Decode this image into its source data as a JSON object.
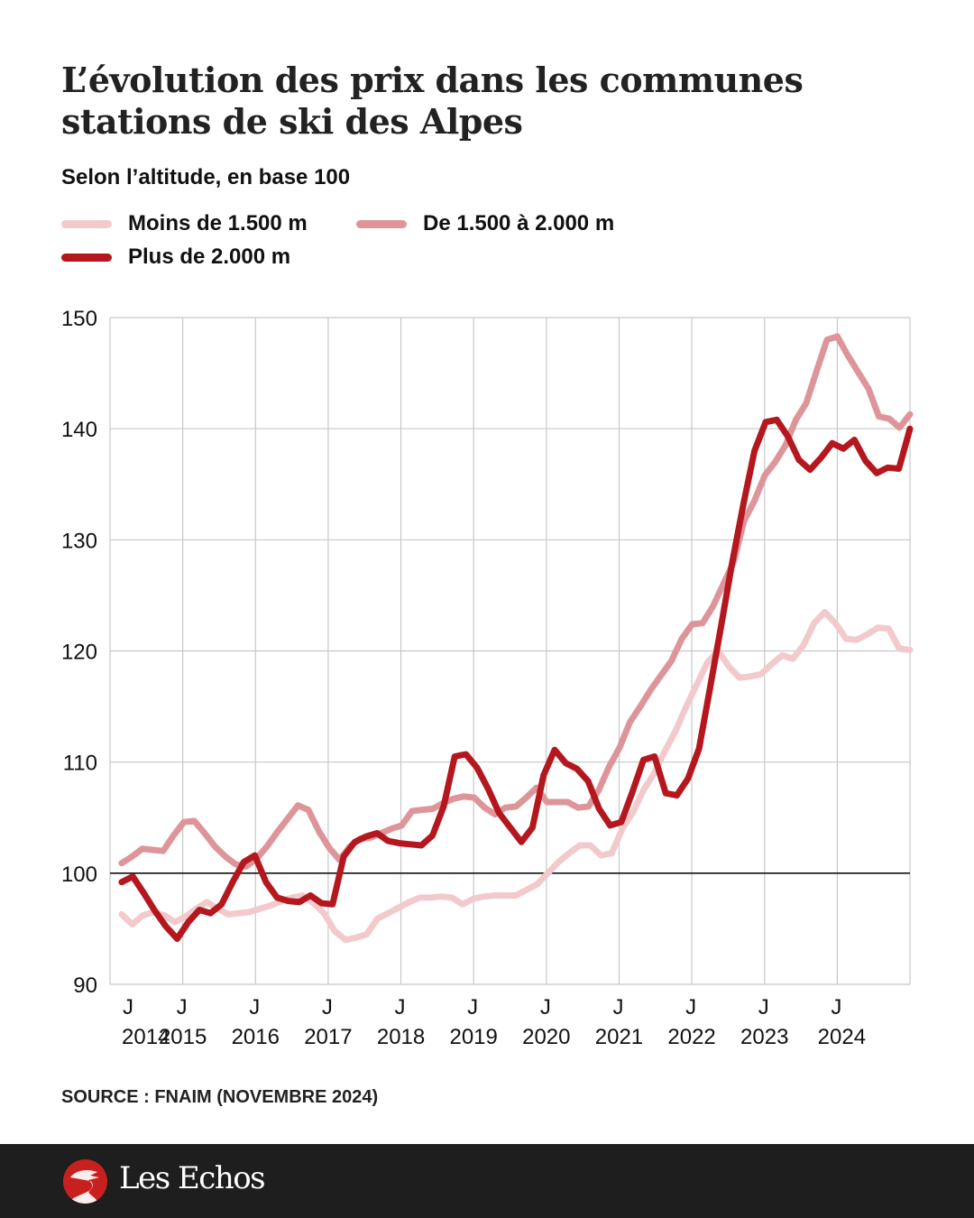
{
  "header": {
    "title": "L’évolution des prix dans les communes stations de ski des Alpes",
    "subtitle": "Selon l’altitude, en base 100"
  },
  "legend": [
    {
      "label": "Moins de 1.500 m",
      "color": "#f2cacc"
    },
    {
      "label": "De 1.500 à 2.000 m",
      "color": "#de959a"
    },
    {
      "label": "Plus de 2.000 m",
      "color": "#b4171e"
    }
  ],
  "source": "SOURCE : FNAIM (NOVEMBRE 2024)",
  "footer": {
    "brand": "Les Echos",
    "brand_color": "#c8201f",
    "background": "#1e1e1e"
  },
  "chart_data": {
    "type": "line",
    "title": "L’évolution des prix dans les communes stations de ski des Alpes",
    "subtitle": "Selon l’altitude, en base 100",
    "xlabel": "",
    "ylabel": "",
    "xlim": [
      2014.0,
      2025.0
    ],
    "ylim": [
      90,
      150
    ],
    "yticks": [
      90,
      100,
      110,
      120,
      130,
      140,
      150
    ],
    "reference_line": 100,
    "grid": true,
    "legend_position": "top-left",
    "xtick_labels": [
      {
        "x": 2014,
        "month": "J",
        "year": "2014"
      },
      {
        "x": 2015,
        "month": "J",
        "year": "2015"
      },
      {
        "x": 2016,
        "month": "J",
        "year": "2016"
      },
      {
        "x": 2017,
        "month": "J",
        "year": "2017"
      },
      {
        "x": 2018,
        "month": "J",
        "year": "2018"
      },
      {
        "x": 2019,
        "month": "J",
        "year": "2019"
      },
      {
        "x": 2020,
        "month": "J",
        "year": "2020"
      },
      {
        "x": 2021,
        "month": "J",
        "year": "2021"
      },
      {
        "x": 2022,
        "month": "J",
        "year": "2022"
      },
      {
        "x": 2023,
        "month": "J",
        "year": "2023"
      },
      {
        "x": 2024,
        "month": "J",
        "year": "2024"
      }
    ],
    "x_start": 2014.16,
    "x_end": 2025.0,
    "series": [
      {
        "name": "Moins de 1.500 m",
        "color": "#f2cacc",
        "values": [
          96.3,
          95.4,
          96.2,
          96.5,
          96.2,
          95.6,
          96.1,
          96.8,
          97.4,
          96.8,
          96.3,
          96.4,
          96.5,
          96.8,
          97.1,
          97.5,
          97.8,
          98.0,
          97.3,
          96.4,
          94.8,
          94.0,
          94.2,
          94.5,
          95.9,
          96.4,
          96.9,
          97.4,
          97.8,
          97.8,
          97.9,
          97.8,
          97.2,
          97.7,
          97.9,
          98.0,
          98.0,
          98.0,
          98.5,
          99.0,
          100.0,
          101.0,
          101.8,
          102.5,
          102.5,
          101.6,
          101.8,
          104.0,
          105.5,
          107.5,
          109.0,
          111.0,
          112.8,
          115.0,
          117.0,
          119.0,
          120.0,
          118.6,
          117.6,
          117.7,
          117.9,
          118.8,
          119.6,
          119.3,
          120.5,
          122.5,
          123.5,
          122.5,
          121.1,
          121.0,
          121.5,
          122.1,
          122.0,
          120.2,
          120.1
        ]
      },
      {
        "name": "De 1.500 à 2.000 m",
        "color": "#de959a",
        "values": [
          100.9,
          101.5,
          102.2,
          102.1,
          102.0,
          103.4,
          104.6,
          104.7,
          103.6,
          102.4,
          101.5,
          100.8,
          100.6,
          101.3,
          102.4,
          103.7,
          104.9,
          106.1,
          105.7,
          103.8,
          102.3,
          101.2,
          102.4,
          103.1,
          103.2,
          103.6,
          104.0,
          104.3,
          105.6,
          105.7,
          105.8,
          106.3,
          106.7,
          106.9,
          106.8,
          105.9,
          105.3,
          105.9,
          106.0,
          106.8,
          107.7,
          106.4,
          106.4,
          106.4,
          105.9,
          106.0,
          107.5,
          109.6,
          111.3,
          113.6,
          115.0,
          116.5,
          117.8,
          119.1,
          121.1,
          122.4,
          122.5,
          124.0,
          126.0,
          128.0,
          131.7,
          133.5,
          135.8,
          137.0,
          138.5,
          140.8,
          142.3,
          145.2,
          148.0,
          148.3,
          146.6,
          145.1,
          143.6,
          141.1,
          140.9,
          140.1,
          141.3
        ]
      },
      {
        "name": "Plus de 2.000 m",
        "color": "#b4171e",
        "values": [
          99.2,
          99.7,
          98.2,
          96.6,
          95.2,
          94.1,
          95.6,
          96.7,
          96.4,
          97.2,
          99.2,
          101.0,
          101.6,
          99.2,
          97.8,
          97.5,
          97.4,
          98.0,
          97.3,
          97.2,
          101.5,
          102.8,
          103.3,
          103.6,
          102.9,
          102.7,
          102.6,
          102.5,
          103.4,
          106.0,
          110.5,
          110.7,
          109.5,
          107.6,
          105.4,
          104.1,
          102.8,
          104.1,
          108.8,
          111.1,
          109.9,
          109.4,
          108.3,
          105.8,
          104.3,
          104.6,
          107.3,
          110.2,
          110.5,
          107.2,
          107.0,
          108.5,
          111.2,
          116.7,
          122.3,
          128.0,
          133.2,
          138.0,
          140.6,
          140.8,
          139.3,
          137.2,
          136.3,
          137.4,
          138.7,
          138.2,
          139.0,
          137.1,
          136.0,
          136.5,
          136.4,
          140.0
        ]
      }
    ]
  }
}
